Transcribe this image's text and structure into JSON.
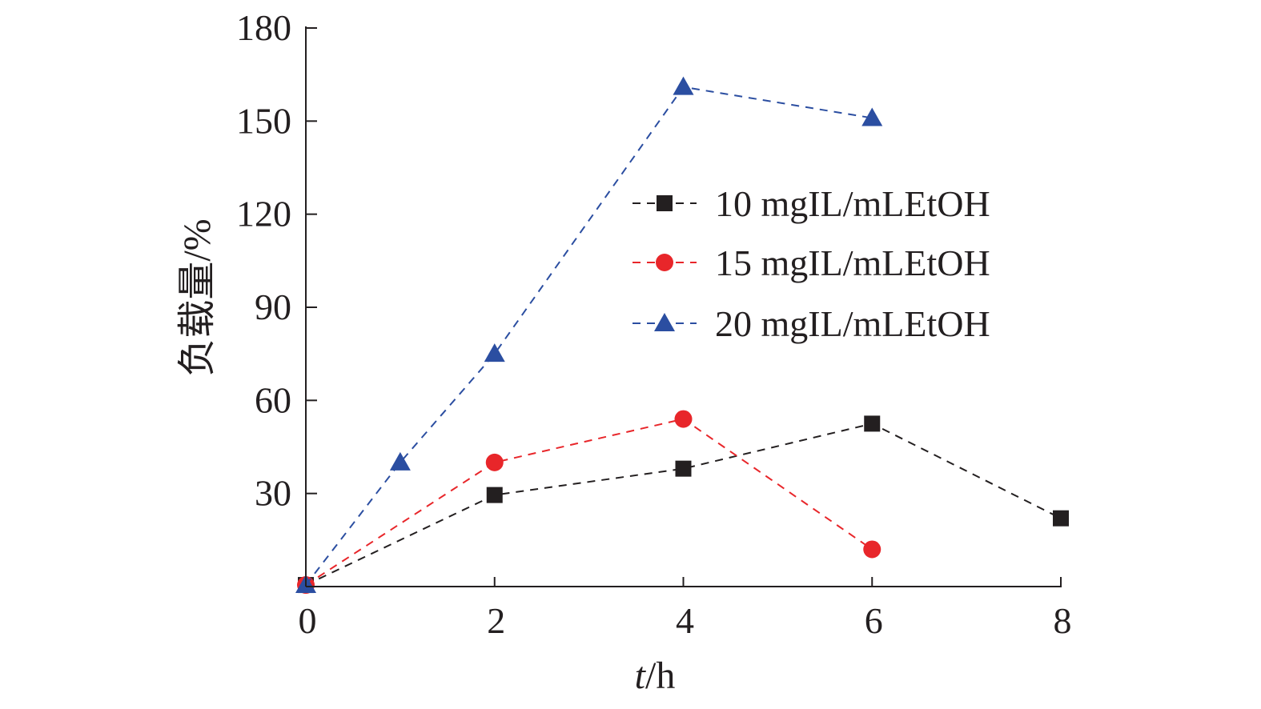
{
  "chart_data": {
    "type": "line",
    "title": "",
    "xlabel_italic": "t",
    "xlabel_rest": "/h",
    "ylabel": "负载量/%",
    "xlim": [
      0,
      8
    ],
    "ylim": [
      0,
      180
    ],
    "xticks": [
      0,
      2,
      4,
      6,
      8
    ],
    "yticks": [
      30,
      60,
      90,
      120,
      150,
      180
    ],
    "x_tick_labels": [
      "0",
      "2",
      "4",
      "6",
      "8"
    ],
    "y_tick_labels": [
      "30",
      "60",
      "90",
      "120",
      "150",
      "180"
    ],
    "grid": false,
    "legend_position": "upper-right",
    "series": [
      {
        "name": "10 mgIL/mLEtOH",
        "marker": "square",
        "color": "#231f20",
        "x": [
          0,
          2,
          4,
          6,
          8
        ],
        "y": [
          0.5,
          29.5,
          38,
          52.5,
          22
        ]
      },
      {
        "name": "15 mgIL/mLEtOH",
        "marker": "circle",
        "color": "#e8262a",
        "x": [
          0,
          2,
          4,
          6
        ],
        "y": [
          0.5,
          40,
          54,
          12
        ]
      },
      {
        "name": "20 mgIL/mLEtOH",
        "marker": "triangle",
        "color": "#2b4ea1",
        "x": [
          0,
          1,
          2,
          4,
          6
        ],
        "y": [
          0.5,
          40,
          75,
          161,
          151
        ]
      }
    ]
  }
}
